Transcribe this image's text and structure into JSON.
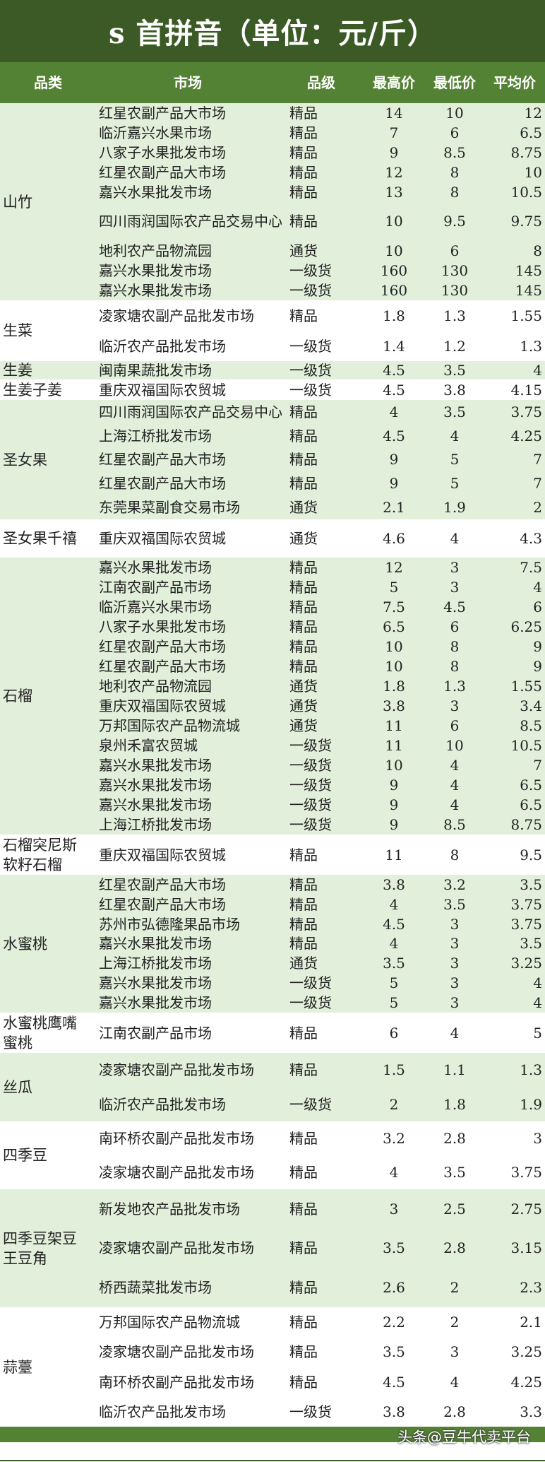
{
  "title": "s 首拼音（单位：元/斤）",
  "columns": [
    "品类",
    "市场",
    "品级",
    "最高价",
    "最低价",
    "平均价"
  ],
  "colors": {
    "title_bg": "#3b5a25",
    "header_bg": "#548235",
    "group_green": "#e2efda"
  },
  "groups": [
    {
      "category": "山竹",
      "rows": [
        [
          "红星农副产品大市场",
          "精品",
          "14",
          "10",
          "12"
        ],
        [
          "临沂嘉兴水果市场",
          "精品",
          "7",
          "6",
          "6.5"
        ],
        [
          "八家子水果批发市场",
          "精品",
          "9",
          "8.5",
          "8.75"
        ],
        [
          "红星农副产品大市场",
          "精品",
          "12",
          "8",
          "10"
        ],
        [
          "嘉兴水果批发市场",
          "精品",
          "13",
          "8",
          "10.5"
        ],
        [
          "四川雨润国际农产品交易中心",
          "精品",
          "10",
          "9.5",
          "9.75"
        ],
        [
          "地利农产品物流园",
          "通货",
          "10",
          "6",
          "8"
        ],
        [
          "嘉兴水果批发市场",
          "一级货",
          "160",
          "130",
          "145"
        ],
        [
          "嘉兴水果批发市场",
          "一级货",
          "160",
          "130",
          "145"
        ]
      ]
    },
    {
      "category": "生菜",
      "rows": [
        [
          "凌家塘农副产品批发市场",
          "精品",
          "1.8",
          "1.3",
          "1.55"
        ],
        [
          "临沂农产品批发市场",
          "一级货",
          "1.4",
          "1.2",
          "1.3"
        ]
      ]
    },
    {
      "category": "生姜",
      "rows": [
        [
          "闽南果蔬批发市场",
          "一级货",
          "4.5",
          "3.5",
          "4"
        ]
      ]
    },
    {
      "category": "生姜子姜",
      "rows": [
        [
          "重庆双福国际农贸城",
          "一级货",
          "4.5",
          "3.8",
          "4.15"
        ]
      ]
    },
    {
      "category": "圣女果",
      "rows": [
        [
          "四川雨润国际农产品交易中心",
          "精品",
          "4",
          "3.5",
          "3.75"
        ],
        [
          "上海江桥批发市场",
          "精品",
          "4.5",
          "4",
          "4.25"
        ],
        [
          "红星农副产品大市场",
          "精品",
          "9",
          "5",
          "7"
        ],
        [
          "红星农副产品大市场",
          "精品",
          "9",
          "5",
          "7"
        ],
        [
          "东莞果菜副食交易市场",
          "通货",
          "2.1",
          "1.9",
          "2"
        ]
      ]
    },
    {
      "category": "圣女果千禧",
      "rows": [
        [
          "重庆双福国际农贸城",
          "通货",
          "4.6",
          "4",
          "4.3"
        ]
      ]
    },
    {
      "category": "石榴",
      "rows": [
        [
          "嘉兴水果批发市场",
          "精品",
          "12",
          "3",
          "7.5"
        ],
        [
          "江南农副产品市场",
          "精品",
          "5",
          "3",
          "4"
        ],
        [
          "临沂嘉兴水果市场",
          "精品",
          "7.5",
          "4.5",
          "6"
        ],
        [
          "八家子水果批发市场",
          "精品",
          "6.5",
          "6",
          "6.25"
        ],
        [
          "红星农副产品大市场",
          "精品",
          "10",
          "8",
          "9"
        ],
        [
          "红星农副产品大市场",
          "精品",
          "10",
          "8",
          "9"
        ],
        [
          "地利农产品物流园",
          "通货",
          "1.8",
          "1.3",
          "1.55"
        ],
        [
          "重庆双福国际农贸城",
          "通货",
          "3.8",
          "3",
          "3.4"
        ],
        [
          "万邦国际农产品物流城",
          "通货",
          "11",
          "6",
          "8.5"
        ],
        [
          "泉州禾富农贸城",
          "一级货",
          "11",
          "10",
          "10.5"
        ],
        [
          "嘉兴水果批发市场",
          "一级货",
          "10",
          "4",
          "7"
        ],
        [
          "嘉兴水果批发市场",
          "一级货",
          "9",
          "4",
          "6.5"
        ],
        [
          "嘉兴水果批发市场",
          "一级货",
          "9",
          "4",
          "6.5"
        ],
        [
          "上海江桥批发市场",
          "一级货",
          "9",
          "8.5",
          "8.75"
        ]
      ]
    },
    {
      "category": "石榴突尼斯软籽石榴",
      "rows": [
        [
          "重庆双福国际农贸城",
          "精品",
          "11",
          "8",
          "9.5"
        ]
      ]
    },
    {
      "category": "水蜜桃",
      "rows": [
        [
          "红星农副产品大市场",
          "精品",
          "3.8",
          "3.2",
          "3.5"
        ],
        [
          "红星农副产品大市场",
          "精品",
          "4",
          "3.5",
          "3.75"
        ],
        [
          "苏州市弘德隆果品市场",
          "精品",
          "4.5",
          "3",
          "3.75"
        ],
        [
          "嘉兴水果批发市场",
          "精品",
          "4",
          "3",
          "3.5"
        ],
        [
          "上海江桥批发市场",
          "通货",
          "3.5",
          "3",
          "3.25"
        ],
        [
          "嘉兴水果批发市场",
          "一级货",
          "5",
          "3",
          "4"
        ],
        [
          "嘉兴水果批发市场",
          "一级货",
          "5",
          "3",
          "4"
        ]
      ]
    },
    {
      "category": "水蜜桃鹰嘴蜜桃",
      "rows": [
        [
          "江南农副产品市场",
          "精品",
          "6",
          "4",
          "5"
        ]
      ]
    },
    {
      "category": "丝瓜",
      "rows": [
        [
          "凌家塘农副产品批发市场",
          "精品",
          "1.5",
          "1.1",
          "1.3"
        ],
        [
          "临沂农产品批发市场",
          "一级货",
          "2",
          "1.8",
          "1.9"
        ]
      ]
    },
    {
      "category": "四季豆",
      "rows": [
        [
          "南环桥农副产品批发市场",
          "精品",
          "3.2",
          "2.8",
          "3"
        ],
        [
          "凌家塘农副产品批发市场",
          "精品",
          "4",
          "3.5",
          "3.75"
        ]
      ]
    },
    {
      "category": "四季豆架豆王豆角",
      "rows": [
        [
          "新发地农产品批发市场",
          "精品",
          "3",
          "2.5",
          "2.75"
        ],
        [
          "凌家塘农副产品批发市场",
          "精品",
          "3.5",
          "2.8",
          "3.15"
        ],
        [
          "桥西蔬菜批发市场",
          "精品",
          "2.6",
          "2",
          "2.3"
        ]
      ]
    },
    {
      "category": "蒜薹",
      "rows": [
        [
          "万邦国际农产品物流城",
          "精品",
          "2.2",
          "2",
          "2.1"
        ],
        [
          "凌家塘农副产品批发市场",
          "精品",
          "3.5",
          "3",
          "3.25"
        ],
        [
          "南环桥农副产品批发市场",
          "精品",
          "4.5",
          "4",
          "4.25"
        ],
        [
          "临沂农产品批发市场",
          "一级货",
          "3.8",
          "2.8",
          "3.3"
        ]
      ]
    }
  ],
  "watermark": "头条@豆牛代卖平台"
}
